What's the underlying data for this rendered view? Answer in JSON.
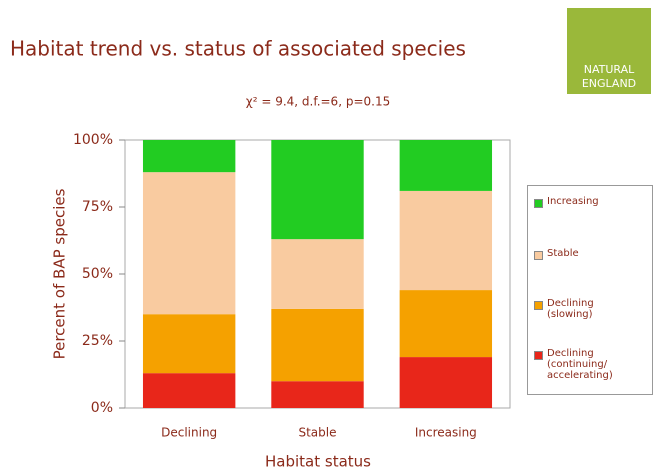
{
  "chart_data": {
    "type": "stacked-bar",
    "title": "Habitat trend vs. status of associated species",
    "subtitle": "χ² = 9.4, d.f.=6, p=0.15",
    "xlabel": "Habitat status",
    "ylabel": "Percent of BAP species",
    "categories": [
      "Declining",
      "Stable",
      "Increasing"
    ],
    "series": [
      {
        "name": "Declining (continuing/ accelerating)",
        "color": "#e8261a",
        "values": [
          13,
          10,
          19
        ]
      },
      {
        "name": "Declining (slowing)",
        "color": "#f5a100",
        "values": [
          22,
          27,
          25
        ]
      },
      {
        "name": "Stable",
        "color": "#f9cba0",
        "values": [
          53,
          26,
          37
        ]
      },
      {
        "name": "Increasing",
        "color": "#22cc22",
        "values": [
          12,
          37,
          19
        ]
      }
    ],
    "ylim": [
      0,
      100
    ],
    "yticks": [
      {
        "value": 0,
        "label": "0%"
      },
      {
        "value": 25,
        "label": "25%"
      },
      {
        "value": 50,
        "label": "50%"
      },
      {
        "value": 75,
        "label": "75%"
      },
      {
        "value": 100,
        "label": "100%"
      }
    ]
  },
  "logo": {
    "line1": "NATURAL",
    "line2": "ENGLAND"
  }
}
